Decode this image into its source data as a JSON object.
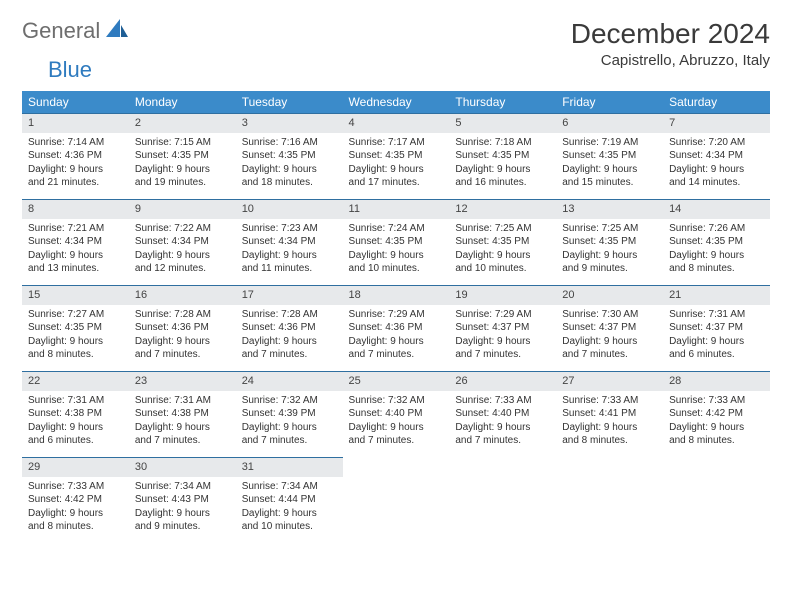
{
  "brand": {
    "name1": "General",
    "name2": "Blue"
  },
  "title": "December 2024",
  "location": "Capistrello, Abruzzo, Italy",
  "colors": {
    "header_bg": "#3b8bca",
    "header_text": "#ffffff",
    "daynum_bg": "#e7e9eb",
    "row_border": "#2f6fa0",
    "brand_gray": "#6e6e6e",
    "brand_blue": "#2f7bbf",
    "body_text": "#333333"
  },
  "typography": {
    "title_fontsize": 28,
    "location_fontsize": 15,
    "dayheader_fontsize": 12,
    "daynum_fontsize": 11,
    "cell_fontsize": 10
  },
  "calendar": {
    "type": "table",
    "day_labels": [
      "Sunday",
      "Monday",
      "Tuesday",
      "Wednesday",
      "Thursday",
      "Friday",
      "Saturday"
    ],
    "weeks": [
      [
        {
          "n": "1",
          "sunrise": "Sunrise: 7:14 AM",
          "sunset": "Sunset: 4:36 PM",
          "dl1": "Daylight: 9 hours",
          "dl2": "and 21 minutes."
        },
        {
          "n": "2",
          "sunrise": "Sunrise: 7:15 AM",
          "sunset": "Sunset: 4:35 PM",
          "dl1": "Daylight: 9 hours",
          "dl2": "and 19 minutes."
        },
        {
          "n": "3",
          "sunrise": "Sunrise: 7:16 AM",
          "sunset": "Sunset: 4:35 PM",
          "dl1": "Daylight: 9 hours",
          "dl2": "and 18 minutes."
        },
        {
          "n": "4",
          "sunrise": "Sunrise: 7:17 AM",
          "sunset": "Sunset: 4:35 PM",
          "dl1": "Daylight: 9 hours",
          "dl2": "and 17 minutes."
        },
        {
          "n": "5",
          "sunrise": "Sunrise: 7:18 AM",
          "sunset": "Sunset: 4:35 PM",
          "dl1": "Daylight: 9 hours",
          "dl2": "and 16 minutes."
        },
        {
          "n": "6",
          "sunrise": "Sunrise: 7:19 AM",
          "sunset": "Sunset: 4:35 PM",
          "dl1": "Daylight: 9 hours",
          "dl2": "and 15 minutes."
        },
        {
          "n": "7",
          "sunrise": "Sunrise: 7:20 AM",
          "sunset": "Sunset: 4:34 PM",
          "dl1": "Daylight: 9 hours",
          "dl2": "and 14 minutes."
        }
      ],
      [
        {
          "n": "8",
          "sunrise": "Sunrise: 7:21 AM",
          "sunset": "Sunset: 4:34 PM",
          "dl1": "Daylight: 9 hours",
          "dl2": "and 13 minutes."
        },
        {
          "n": "9",
          "sunrise": "Sunrise: 7:22 AM",
          "sunset": "Sunset: 4:34 PM",
          "dl1": "Daylight: 9 hours",
          "dl2": "and 12 minutes."
        },
        {
          "n": "10",
          "sunrise": "Sunrise: 7:23 AM",
          "sunset": "Sunset: 4:34 PM",
          "dl1": "Daylight: 9 hours",
          "dl2": "and 11 minutes."
        },
        {
          "n": "11",
          "sunrise": "Sunrise: 7:24 AM",
          "sunset": "Sunset: 4:35 PM",
          "dl1": "Daylight: 9 hours",
          "dl2": "and 10 minutes."
        },
        {
          "n": "12",
          "sunrise": "Sunrise: 7:25 AM",
          "sunset": "Sunset: 4:35 PM",
          "dl1": "Daylight: 9 hours",
          "dl2": "and 10 minutes."
        },
        {
          "n": "13",
          "sunrise": "Sunrise: 7:25 AM",
          "sunset": "Sunset: 4:35 PM",
          "dl1": "Daylight: 9 hours",
          "dl2": "and 9 minutes."
        },
        {
          "n": "14",
          "sunrise": "Sunrise: 7:26 AM",
          "sunset": "Sunset: 4:35 PM",
          "dl1": "Daylight: 9 hours",
          "dl2": "and 8 minutes."
        }
      ],
      [
        {
          "n": "15",
          "sunrise": "Sunrise: 7:27 AM",
          "sunset": "Sunset: 4:35 PM",
          "dl1": "Daylight: 9 hours",
          "dl2": "and 8 minutes."
        },
        {
          "n": "16",
          "sunrise": "Sunrise: 7:28 AM",
          "sunset": "Sunset: 4:36 PM",
          "dl1": "Daylight: 9 hours",
          "dl2": "and 7 minutes."
        },
        {
          "n": "17",
          "sunrise": "Sunrise: 7:28 AM",
          "sunset": "Sunset: 4:36 PM",
          "dl1": "Daylight: 9 hours",
          "dl2": "and 7 minutes."
        },
        {
          "n": "18",
          "sunrise": "Sunrise: 7:29 AM",
          "sunset": "Sunset: 4:36 PM",
          "dl1": "Daylight: 9 hours",
          "dl2": "and 7 minutes."
        },
        {
          "n": "19",
          "sunrise": "Sunrise: 7:29 AM",
          "sunset": "Sunset: 4:37 PM",
          "dl1": "Daylight: 9 hours",
          "dl2": "and 7 minutes."
        },
        {
          "n": "20",
          "sunrise": "Sunrise: 7:30 AM",
          "sunset": "Sunset: 4:37 PM",
          "dl1": "Daylight: 9 hours",
          "dl2": "and 7 minutes."
        },
        {
          "n": "21",
          "sunrise": "Sunrise: 7:31 AM",
          "sunset": "Sunset: 4:37 PM",
          "dl1": "Daylight: 9 hours",
          "dl2": "and 6 minutes."
        }
      ],
      [
        {
          "n": "22",
          "sunrise": "Sunrise: 7:31 AM",
          "sunset": "Sunset: 4:38 PM",
          "dl1": "Daylight: 9 hours",
          "dl2": "and 6 minutes."
        },
        {
          "n": "23",
          "sunrise": "Sunrise: 7:31 AM",
          "sunset": "Sunset: 4:38 PM",
          "dl1": "Daylight: 9 hours",
          "dl2": "and 7 minutes."
        },
        {
          "n": "24",
          "sunrise": "Sunrise: 7:32 AM",
          "sunset": "Sunset: 4:39 PM",
          "dl1": "Daylight: 9 hours",
          "dl2": "and 7 minutes."
        },
        {
          "n": "25",
          "sunrise": "Sunrise: 7:32 AM",
          "sunset": "Sunset: 4:40 PM",
          "dl1": "Daylight: 9 hours",
          "dl2": "and 7 minutes."
        },
        {
          "n": "26",
          "sunrise": "Sunrise: 7:33 AM",
          "sunset": "Sunset: 4:40 PM",
          "dl1": "Daylight: 9 hours",
          "dl2": "and 7 minutes."
        },
        {
          "n": "27",
          "sunrise": "Sunrise: 7:33 AM",
          "sunset": "Sunset: 4:41 PM",
          "dl1": "Daylight: 9 hours",
          "dl2": "and 8 minutes."
        },
        {
          "n": "28",
          "sunrise": "Sunrise: 7:33 AM",
          "sunset": "Sunset: 4:42 PM",
          "dl1": "Daylight: 9 hours",
          "dl2": "and 8 minutes."
        }
      ],
      [
        {
          "n": "29",
          "sunrise": "Sunrise: 7:33 AM",
          "sunset": "Sunset: 4:42 PM",
          "dl1": "Daylight: 9 hours",
          "dl2": "and 8 minutes."
        },
        {
          "n": "30",
          "sunrise": "Sunrise: 7:34 AM",
          "sunset": "Sunset: 4:43 PM",
          "dl1": "Daylight: 9 hours",
          "dl2": "and 9 minutes."
        },
        {
          "n": "31",
          "sunrise": "Sunrise: 7:34 AM",
          "sunset": "Sunset: 4:44 PM",
          "dl1": "Daylight: 9 hours",
          "dl2": "and 10 minutes."
        },
        null,
        null,
        null,
        null
      ]
    ]
  }
}
